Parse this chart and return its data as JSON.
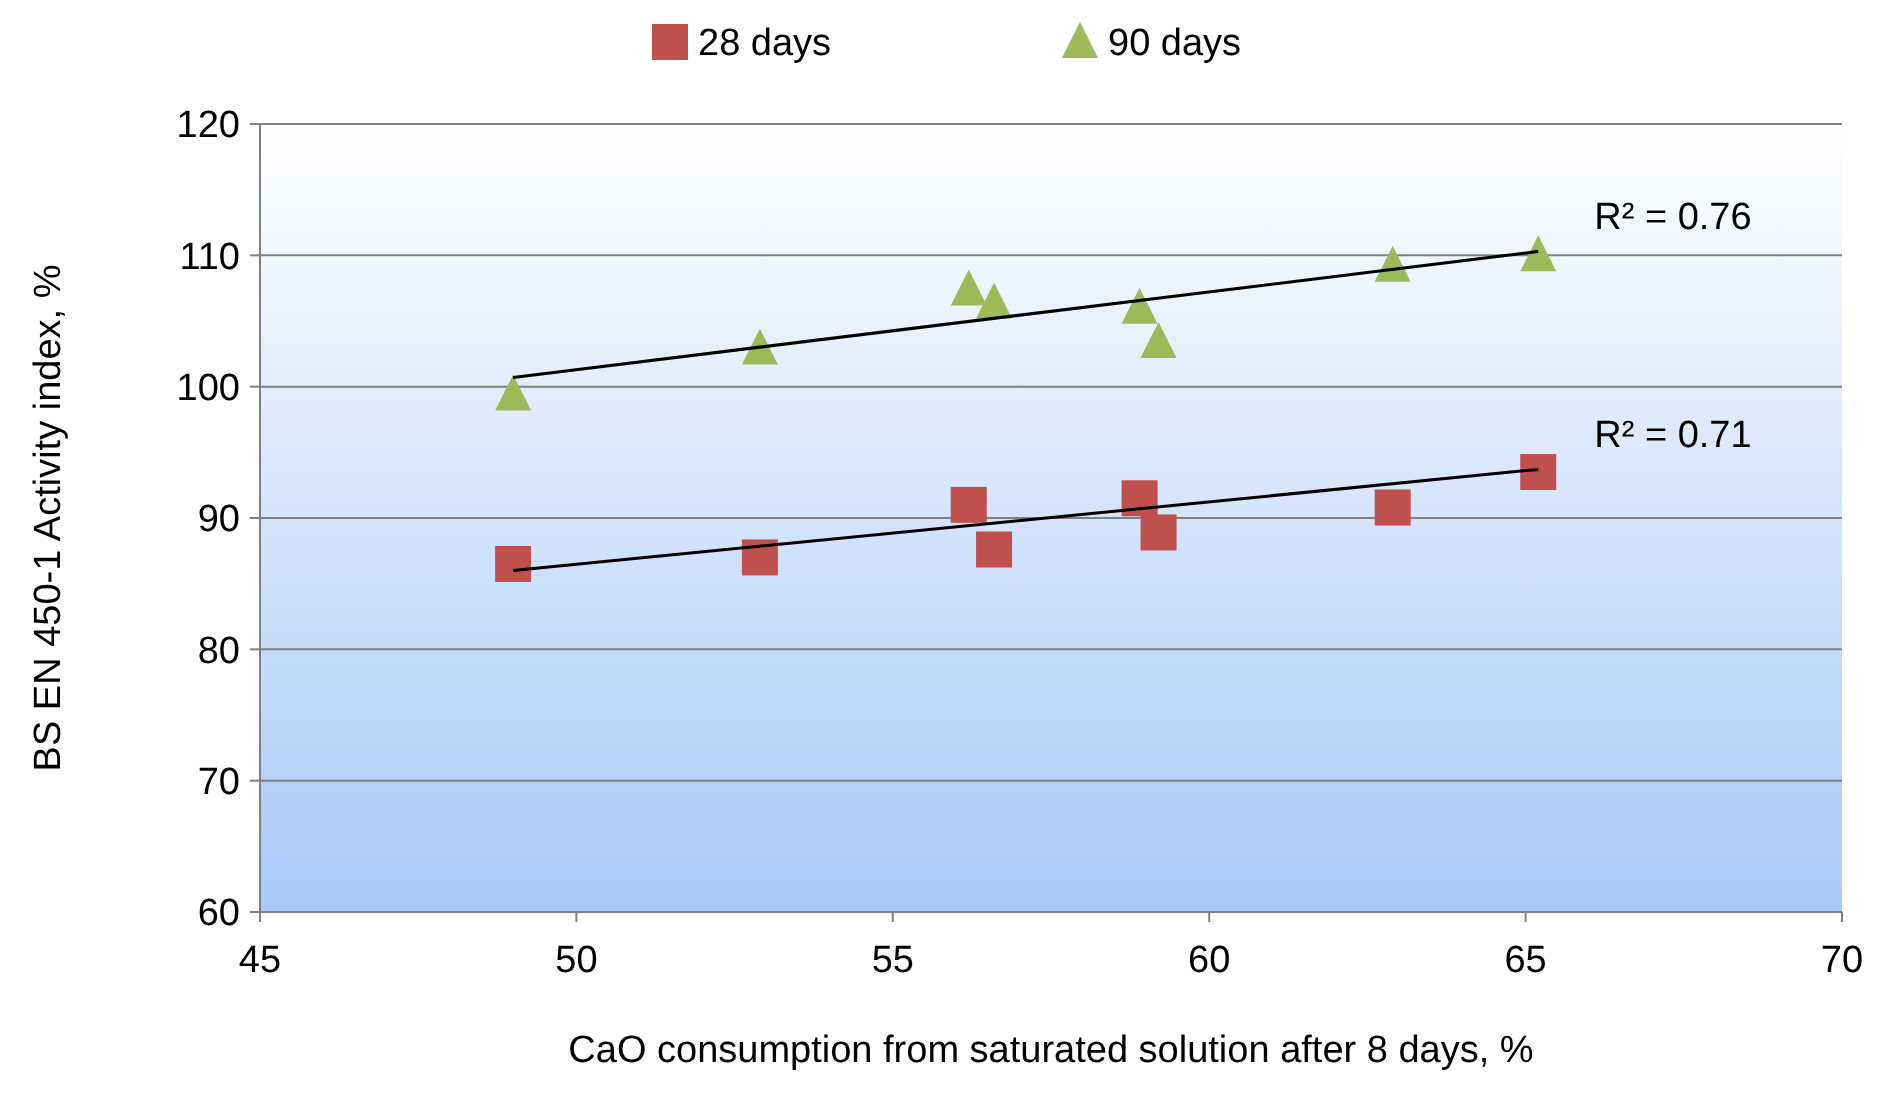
{
  "chart_data": {
    "type": "scatter",
    "xlabel": "CaO consumption from saturated solution after 8 days, %",
    "ylabel": "BS EN 450-1 Activity index, %",
    "xlim": [
      45,
      70
    ],
    "xticks": [
      45,
      50,
      55,
      60,
      65,
      70
    ],
    "ylim": [
      60,
      120
    ],
    "yticks": [
      60,
      70,
      80,
      90,
      100,
      110,
      120
    ],
    "grid": "y",
    "legend": "top",
    "series": [
      {
        "name": "28 days",
        "color": "#c0504d",
        "marker": "square",
        "x": [
          49.0,
          52.9,
          56.2,
          56.6,
          58.9,
          59.2,
          62.9,
          65.2
        ],
        "values": [
          86.5,
          87.0,
          91.0,
          87.6,
          91.5,
          88.9,
          90.8,
          93.5
        ]
      },
      {
        "name": "90 days",
        "color": "#9bbb59",
        "marker": "triangle",
        "x": [
          49.0,
          52.9,
          56.2,
          56.6,
          58.9,
          59.2,
          62.9,
          65.2
        ],
        "values": [
          99.4,
          102.9,
          107.4,
          106.4,
          106.0,
          103.4,
          109.2,
          110.0
        ]
      },
      {
        "type": "line",
        "color": "#000000",
        "marker": "none",
        "x": [
          49.0,
          65.2
        ],
        "values": [
          100.7,
          110.3
        ]
      },
      {
        "type": "line",
        "color": "#000000",
        "marker": "none",
        "x": [
          49.0,
          65.2
        ],
        "values": [
          86.0,
          93.7
        ]
      }
    ],
    "annotations": [
      "R² = 0.76",
      "R² = 0.71"
    ]
  }
}
